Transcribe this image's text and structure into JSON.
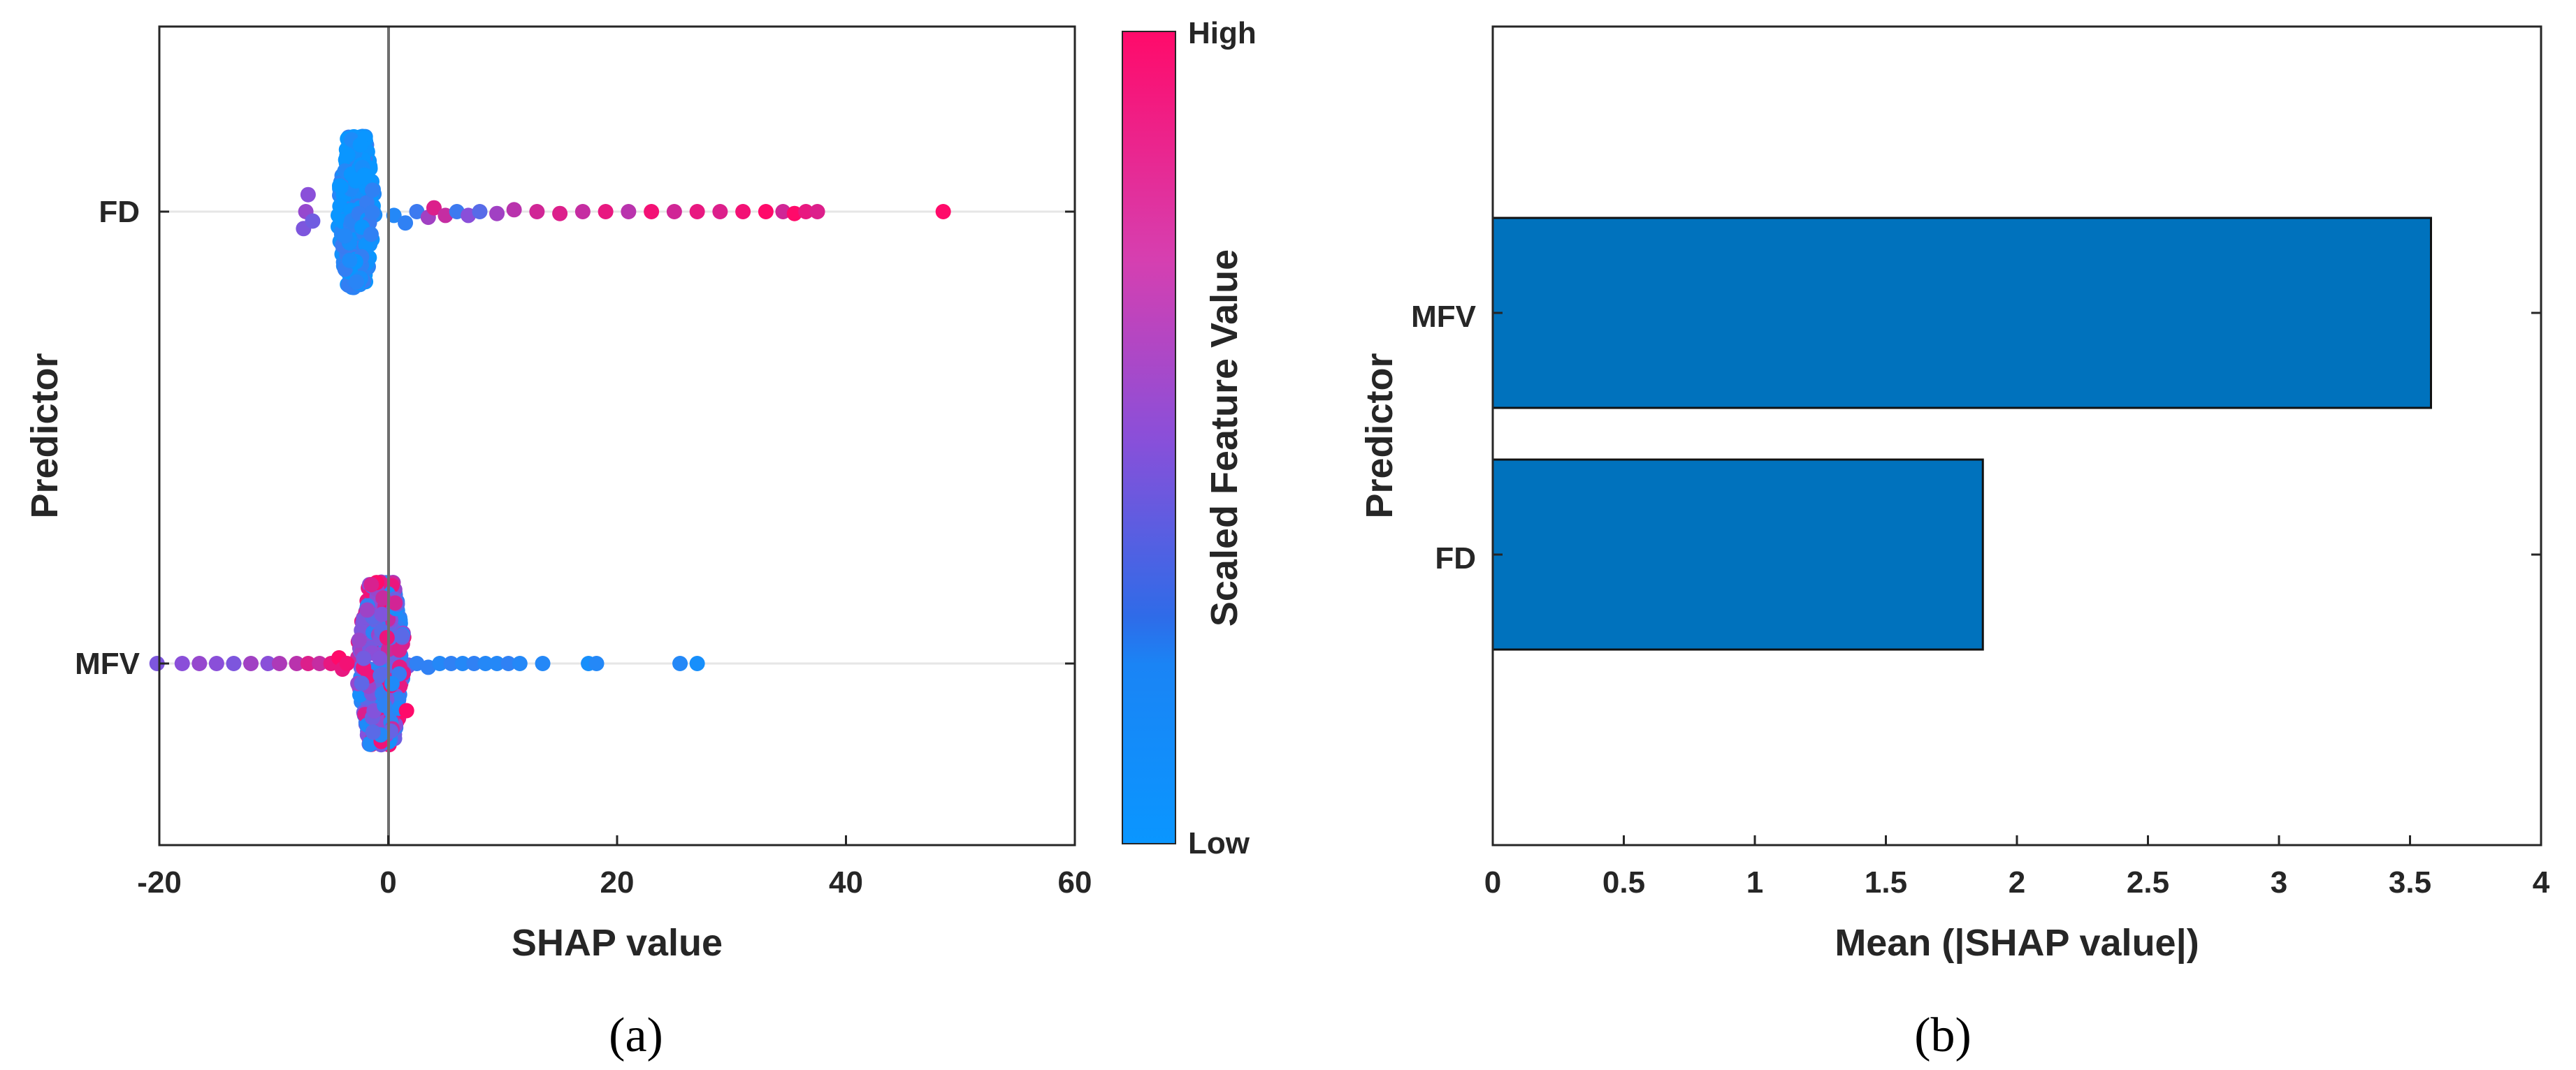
{
  "chart_data": [
    {
      "type": "scatter",
      "subtype": "shap-beeswarm",
      "panel_label": "(a)",
      "xlabel": "SHAP value",
      "ylabel": "Predictor",
      "xlim": [
        -20,
        60
      ],
      "xticks": [
        "-20",
        "0",
        "20",
        "40",
        "60"
      ],
      "categories": [
        "FD",
        "MFV"
      ],
      "colorbar": {
        "title": "Scaled Feature Value",
        "high_label": "High",
        "low_label": "Low",
        "low_color": "#0a96ff",
        "mid_color": "#8a4fd9",
        "high_color": "#ff0a6a"
      },
      "series": [
        {
          "name": "FD",
          "core": {
            "x_min": -4.6,
            "x_max": -1.0,
            "spread": 0.42,
            "value": 0.05
          },
          "points": [
            {
              "x": -7.4,
              "dy": 0.09,
              "v": 0.45
            },
            {
              "x": -7.0,
              "dy": -0.09,
              "v": 0.5
            },
            {
              "x": -7.2,
              "dy": 0.0,
              "v": 0.55
            },
            {
              "x": -6.6,
              "dy": 0.05,
              "v": 0.4
            },
            {
              "x": -1.5,
              "dy": 0.12,
              "v": 0.15
            },
            {
              "x": 0.5,
              "dy": 0.02,
              "v": 0.1
            },
            {
              "x": 1.5,
              "dy": 0.06,
              "v": 0.15
            },
            {
              "x": 2.5,
              "dy": 0.0,
              "v": 0.2
            },
            {
              "x": 3.5,
              "dy": 0.03,
              "v": 0.6
            },
            {
              "x": 4.0,
              "dy": -0.02,
              "v": 0.85
            },
            {
              "x": 5.0,
              "dy": 0.02,
              "v": 0.75
            },
            {
              "x": 6.0,
              "dy": 0.0,
              "v": 0.2
            },
            {
              "x": 7.0,
              "dy": 0.02,
              "v": 0.5
            },
            {
              "x": 8.0,
              "dy": 0.0,
              "v": 0.3
            },
            {
              "x": 9.5,
              "dy": 0.01,
              "v": 0.6
            },
            {
              "x": 11.0,
              "dy": -0.01,
              "v": 0.7
            },
            {
              "x": 13.0,
              "dy": 0.0,
              "v": 0.8
            },
            {
              "x": 15.0,
              "dy": 0.01,
              "v": 0.85
            },
            {
              "x": 17.0,
              "dy": 0.0,
              "v": 0.75
            },
            {
              "x": 19.0,
              "dy": 0.0,
              "v": 0.9
            },
            {
              "x": 21.0,
              "dy": 0.0,
              "v": 0.7
            },
            {
              "x": 23.0,
              "dy": 0.0,
              "v": 0.95
            },
            {
              "x": 25.0,
              "dy": 0.0,
              "v": 0.8
            },
            {
              "x": 27.0,
              "dy": 0.0,
              "v": 0.9
            },
            {
              "x": 29.0,
              "dy": 0.0,
              "v": 0.85
            },
            {
              "x": 31.0,
              "dy": 0.0,
              "v": 0.95
            },
            {
              "x": 33.0,
              "dy": 0.0,
              "v": 1.0
            },
            {
              "x": 34.5,
              "dy": 0.0,
              "v": 0.8
            },
            {
              "x": 35.5,
              "dy": 0.01,
              "v": 1.0
            },
            {
              "x": 36.5,
              "dy": 0.0,
              "v": 0.9
            },
            {
              "x": 37.5,
              "dy": 0.0,
              "v": 0.85
            },
            {
              "x": 48.5,
              "dy": 0.0,
              "v": 1.0
            }
          ]
        },
        {
          "name": "MFV",
          "core": {
            "x_min": -3.0,
            "x_max": 1.8,
            "spread": 0.45,
            "value": 0.45
          },
          "points": [
            {
              "x": -20.2,
              "dy": 0.0,
              "v": 0.45
            },
            {
              "x": -18.0,
              "dy": 0.0,
              "v": 0.5
            },
            {
              "x": -16.5,
              "dy": 0.0,
              "v": 0.55
            },
            {
              "x": -15.0,
              "dy": 0.0,
              "v": 0.5
            },
            {
              "x": -13.5,
              "dy": 0.0,
              "v": 0.45
            },
            {
              "x": -12.0,
              "dy": 0.0,
              "v": 0.6
            },
            {
              "x": -10.5,
              "dy": 0.0,
              "v": 0.5
            },
            {
              "x": -9.5,
              "dy": 0.0,
              "v": 0.65
            },
            {
              "x": -8.0,
              "dy": 0.0,
              "v": 0.7
            },
            {
              "x": -7.0,
              "dy": 0.0,
              "v": 0.85
            },
            {
              "x": -6.0,
              "dy": 0.0,
              "v": 0.75
            },
            {
              "x": -5.0,
              "dy": 0.0,
              "v": 0.9
            },
            {
              "x": -4.3,
              "dy": -0.03,
              "v": 1.0
            },
            {
              "x": -4.0,
              "dy": 0.03,
              "v": 0.9
            },
            {
              "x": -3.6,
              "dy": 0.0,
              "v": 0.95
            },
            {
              "x": 1.6,
              "dy": 0.25,
              "v": 1.0
            },
            {
              "x": 2.5,
              "dy": 0.0,
              "v": 0.15
            },
            {
              "x": 3.5,
              "dy": 0.02,
              "v": 0.15
            },
            {
              "x": 4.5,
              "dy": 0.0,
              "v": 0.1
            },
            {
              "x": 5.5,
              "dy": 0.0,
              "v": 0.15
            },
            {
              "x": 6.5,
              "dy": 0.0,
              "v": 0.1
            },
            {
              "x": 7.5,
              "dy": 0.0,
              "v": 0.15
            },
            {
              "x": 8.5,
              "dy": 0.0,
              "v": 0.1
            },
            {
              "x": 9.5,
              "dy": 0.0,
              "v": 0.1
            },
            {
              "x": 10.5,
              "dy": 0.0,
              "v": 0.15
            },
            {
              "x": 11.5,
              "dy": 0.0,
              "v": 0.1
            },
            {
              "x": 13.5,
              "dy": 0.0,
              "v": 0.1
            },
            {
              "x": 17.5,
              "dy": 0.0,
              "v": 0.05
            },
            {
              "x": 18.2,
              "dy": 0.0,
              "v": 0.1
            },
            {
              "x": 25.5,
              "dy": 0.0,
              "v": 0.1
            },
            {
              "x": 27.0,
              "dy": 0.0,
              "v": 0.05
            }
          ]
        }
      ]
    },
    {
      "type": "bar",
      "orientation": "horizontal",
      "panel_label": "(b)",
      "xlabel": "Mean (|SHAP value|)",
      "ylabel": "Predictor",
      "xlim": [
        0,
        4
      ],
      "xticks": [
        "0",
        "0.5",
        "1",
        "1.5",
        "2",
        "2.5",
        "3",
        "3.5",
        "4"
      ],
      "categories": [
        "MFV",
        "FD"
      ],
      "values": [
        3.58,
        1.87
      ],
      "bar_color": "#0072bd"
    }
  ]
}
